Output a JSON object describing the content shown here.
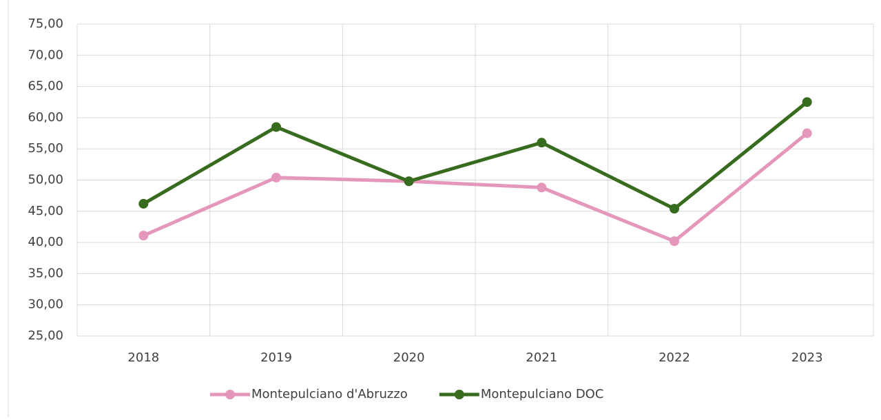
{
  "chart_data": {
    "type": "line",
    "categories": [
      "2018",
      "2019",
      "2020",
      "2021",
      "2022",
      "2023"
    ],
    "series": [
      {
        "name": "Montepulciano d'Abruzzo",
        "color": "#e597bb",
        "values": [
          41.1,
          50.4,
          49.8,
          48.8,
          40.2,
          57.5
        ]
      },
      {
        "name": "Montepulciano DOC",
        "color": "#376b1e",
        "values": [
          46.2,
          58.5,
          49.8,
          56.0,
          45.4,
          62.5
        ]
      }
    ],
    "ylim": [
      25,
      75
    ],
    "yticks": [
      {
        "value": 25,
        "label": "25,00"
      },
      {
        "value": 30,
        "label": "30,00"
      },
      {
        "value": 35,
        "label": "35,00"
      },
      {
        "value": 40,
        "label": "40,00"
      },
      {
        "value": 45,
        "label": "45,00"
      },
      {
        "value": 50,
        "label": "50,00"
      },
      {
        "value": 55,
        "label": "55,00"
      },
      {
        "value": 60,
        "label": "60,00"
      },
      {
        "value": 65,
        "label": "65,00"
      },
      {
        "value": 70,
        "label": "70,00"
      },
      {
        "value": 75,
        "label": "75,00"
      }
    ],
    "grid": true,
    "legend": "bottom"
  }
}
